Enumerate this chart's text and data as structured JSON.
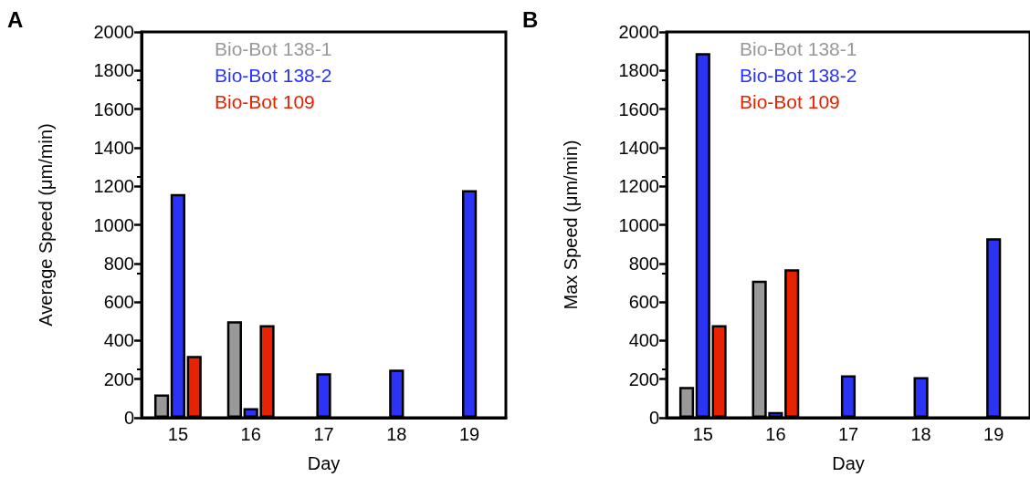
{
  "chart_data": [
    {
      "type": "bar",
      "annotations": [
        "A"
      ],
      "xlabel": "Day",
      "ylabel": "Average Speed (μm/min)",
      "categories": [
        "15",
        "16",
        "17",
        "18",
        "19"
      ],
      "ylim": [
        0,
        2000
      ],
      "yticks": [
        0,
        200,
        400,
        600,
        800,
        1000,
        1200,
        1400,
        1600,
        1800,
        2000
      ],
      "legend": "top",
      "grid": false,
      "series": [
        {
          "name": "Bio-Bot 138-1",
          "color": "#999999",
          "values": [
            120,
            500,
            null,
            null,
            null
          ]
        },
        {
          "name": "Bio-Bot 138-2",
          "color": "#2b33f5",
          "values": [
            1160,
            50,
            230,
            250,
            1180
          ]
        },
        {
          "name": "Bio-Bot 109",
          "color": "#e62200",
          "values": [
            320,
            480,
            null,
            null,
            null
          ]
        }
      ]
    },
    {
      "type": "bar",
      "annotations": [
        "B"
      ],
      "xlabel": "Day",
      "ylabel": "Max Speed (μm/min)",
      "categories": [
        "15",
        "16",
        "17",
        "18",
        "19"
      ],
      "ylim": [
        0,
        2000
      ],
      "yticks": [
        0,
        200,
        400,
        600,
        800,
        1000,
        1200,
        1400,
        1600,
        1800,
        2000
      ],
      "legend": "top",
      "grid": false,
      "series": [
        {
          "name": "Bio-Bot 138-1",
          "color": "#999999",
          "values": [
            160,
            710,
            null,
            null,
            null
          ]
        },
        {
          "name": "Bio-Bot 138-2",
          "color": "#2b33f5",
          "values": [
            1890,
            30,
            220,
            210,
            930
          ]
        },
        {
          "name": "Bio-Bot 109",
          "color": "#e62200",
          "values": [
            480,
            770,
            null,
            null,
            null
          ]
        }
      ]
    }
  ]
}
